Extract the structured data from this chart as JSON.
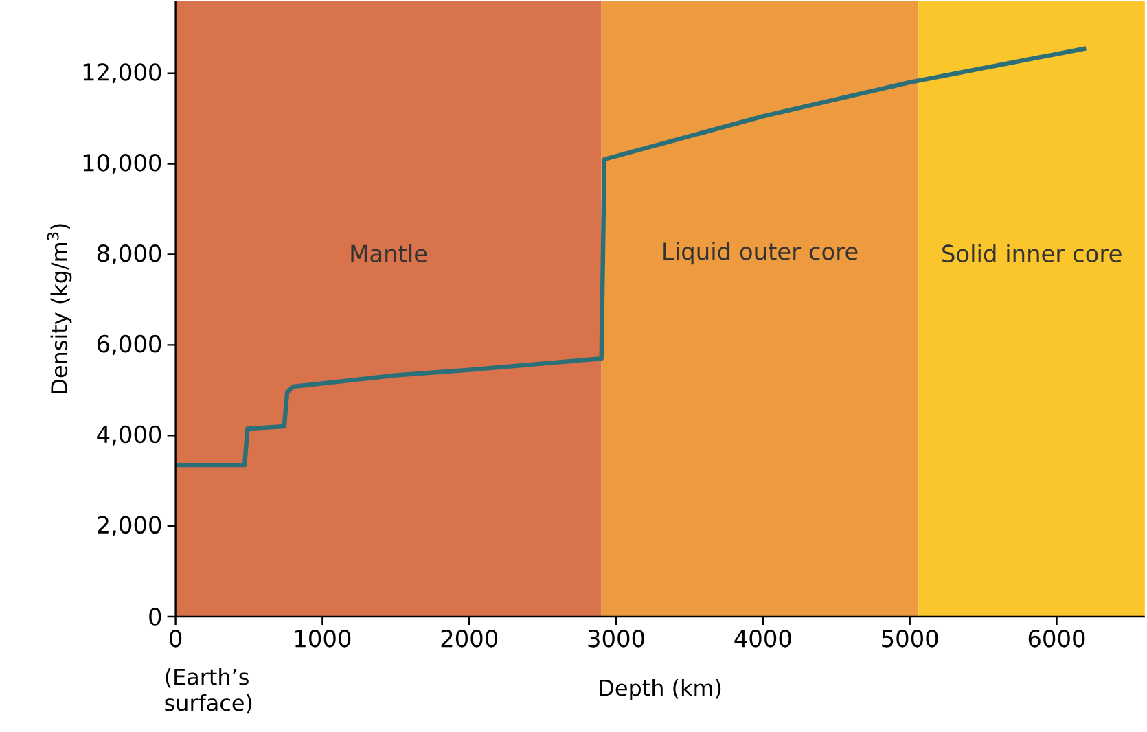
{
  "chart_data": {
    "type": "line",
    "xlabel": "Depth (km)",
    "ylabel": "Density (kg/m$^{3}$)",
    "x": [
      0,
      470,
      490,
      740,
      760,
      800,
      1000,
      1500,
      2000,
      2900,
      2920,
      4000,
      5000,
      6200
    ],
    "series": [
      {
        "color": "#2b6f78",
        "values": [
          3350,
          3350,
          4150,
          4200,
          4950,
          5080,
          5150,
          5330,
          5450,
          5700,
          10100,
          11050,
          11800,
          12550
        ]
      }
    ],
    "xlim": [
      0,
      6600
    ],
    "ylim": [
      0,
      13600
    ],
    "xticks": [
      0,
      1000,
      2000,
      3000,
      4000,
      5000,
      6000
    ],
    "yticks": [
      0,
      {
        "value": 2000,
        "label": "2,000"
      },
      {
        "value": 4000,
        "label": "4,000"
      },
      {
        "value": 6000,
        "label": "6,000"
      },
      {
        "value": 8000,
        "label": "8,000"
      },
      {
        "value": 10000,
        "label": "10,000"
      },
      {
        "value": 12000,
        "label": "12,000"
      }
    ],
    "bands": [
      {
        "axis": "x",
        "from": 0,
        "to": 2900,
        "label": "Mantle",
        "color": "#d8734c"
      },
      {
        "axis": "x",
        "from": 2900,
        "to": 5060,
        "label": "Liquid outer core",
        "color": "#ee9a3e"
      },
      {
        "axis": "x",
        "from": 5060,
        "to": 6600,
        "label": "Solid inner core",
        "color": "#fbc52c"
      }
    ],
    "annotations": [
      "(Earth’s surface)"
    ],
    "line_style": "solid",
    "marker": "none",
    "grid": false
  }
}
